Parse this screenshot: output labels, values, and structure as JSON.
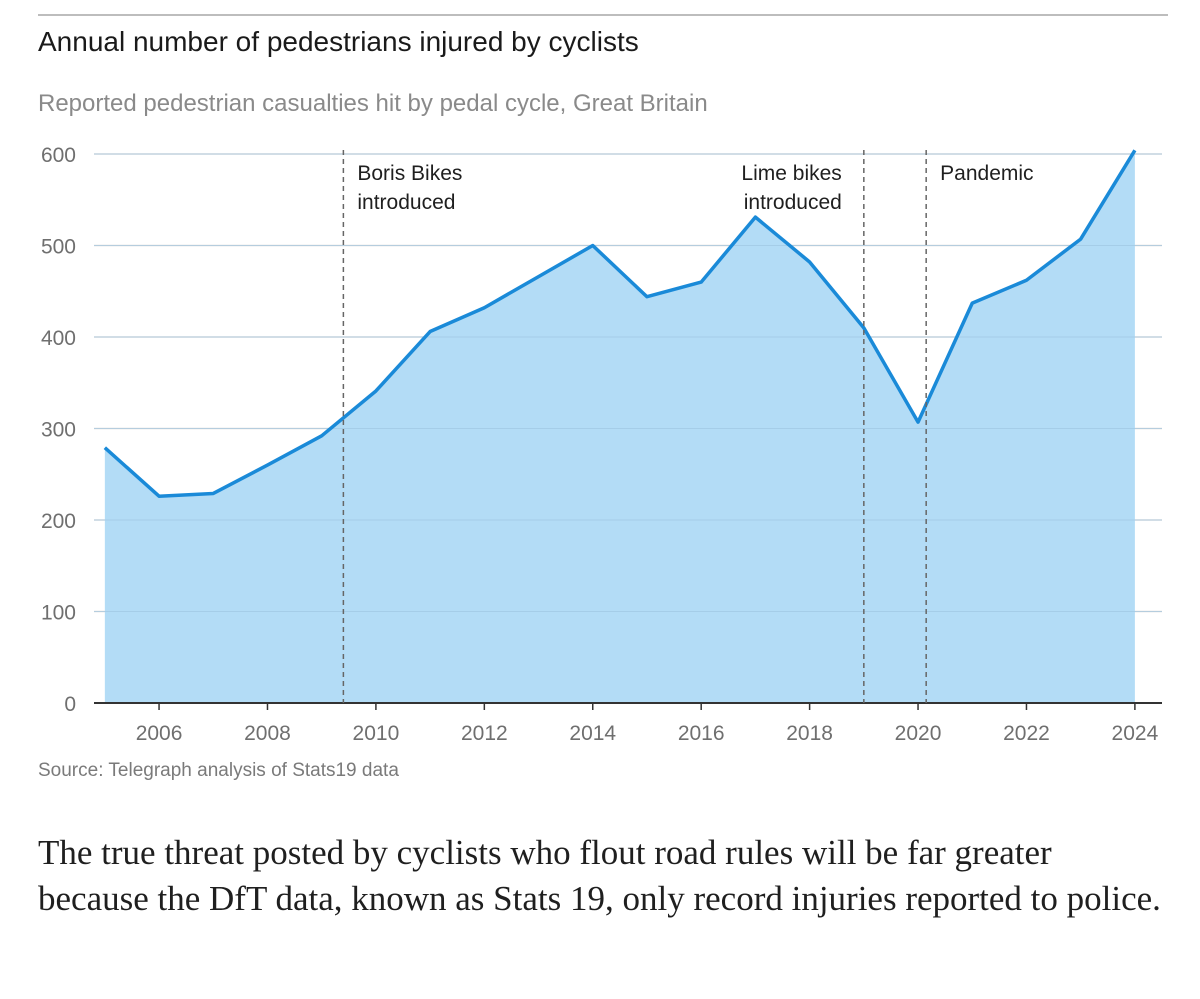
{
  "chart_data": {
    "type": "area",
    "title": "Annual number of pedestrians injured by cyclists",
    "subtitle": "Reported pedestrian casualties hit by pedal cycle, Great Britain",
    "source": "Source: Telegraph analysis of Stats19 data",
    "xlabel": "",
    "ylabel": "",
    "x": [
      2005,
      2006,
      2007,
      2008,
      2009,
      2010,
      2011,
      2012,
      2013,
      2014,
      2015,
      2016,
      2017,
      2018,
      2019,
      2020,
      2021,
      2022,
      2023,
      2024
    ],
    "values": [
      279,
      226,
      229,
      260,
      292,
      341,
      406,
      432,
      466,
      500,
      444,
      460,
      531,
      482,
      410,
      307,
      437,
      462,
      507,
      604
    ],
    "xlim": [
      2004.8,
      2024.5
    ],
    "ylim": [
      0,
      600
    ],
    "yticks": [
      0,
      100,
      200,
      300,
      400,
      500,
      600
    ],
    "ytick_labels": [
      "0",
      "100",
      "200",
      "300",
      "400",
      "500",
      "600"
    ],
    "xticks": [
      2006,
      2008,
      2010,
      2012,
      2014,
      2016,
      2018,
      2020,
      2022,
      2024
    ],
    "xtick_labels": [
      "2006",
      "2008",
      "2010",
      "2012",
      "2014",
      "2016",
      "2018",
      "2020",
      "2022",
      "2024"
    ],
    "grid": true,
    "annotations": [
      {
        "x": 2009.4,
        "lines": [
          "Boris Bikes",
          "introduced"
        ],
        "side": "right"
      },
      {
        "x": 2019.0,
        "lines": [
          "Lime bikes",
          "introduced"
        ],
        "side": "left"
      },
      {
        "x": 2020.15,
        "lines": [
          "Pandemic"
        ],
        "side": "right"
      }
    ],
    "colors": {
      "fill": "#b3dcf6",
      "line": "#1a8ad8",
      "grid": "#dcdcdc",
      "annotation_line": "#666666"
    }
  },
  "article": {
    "text": "The true threat posted by cyclists who flout road rules will be far greater because the DfT data, known as Stats 19, only record injuries reported to police."
  }
}
